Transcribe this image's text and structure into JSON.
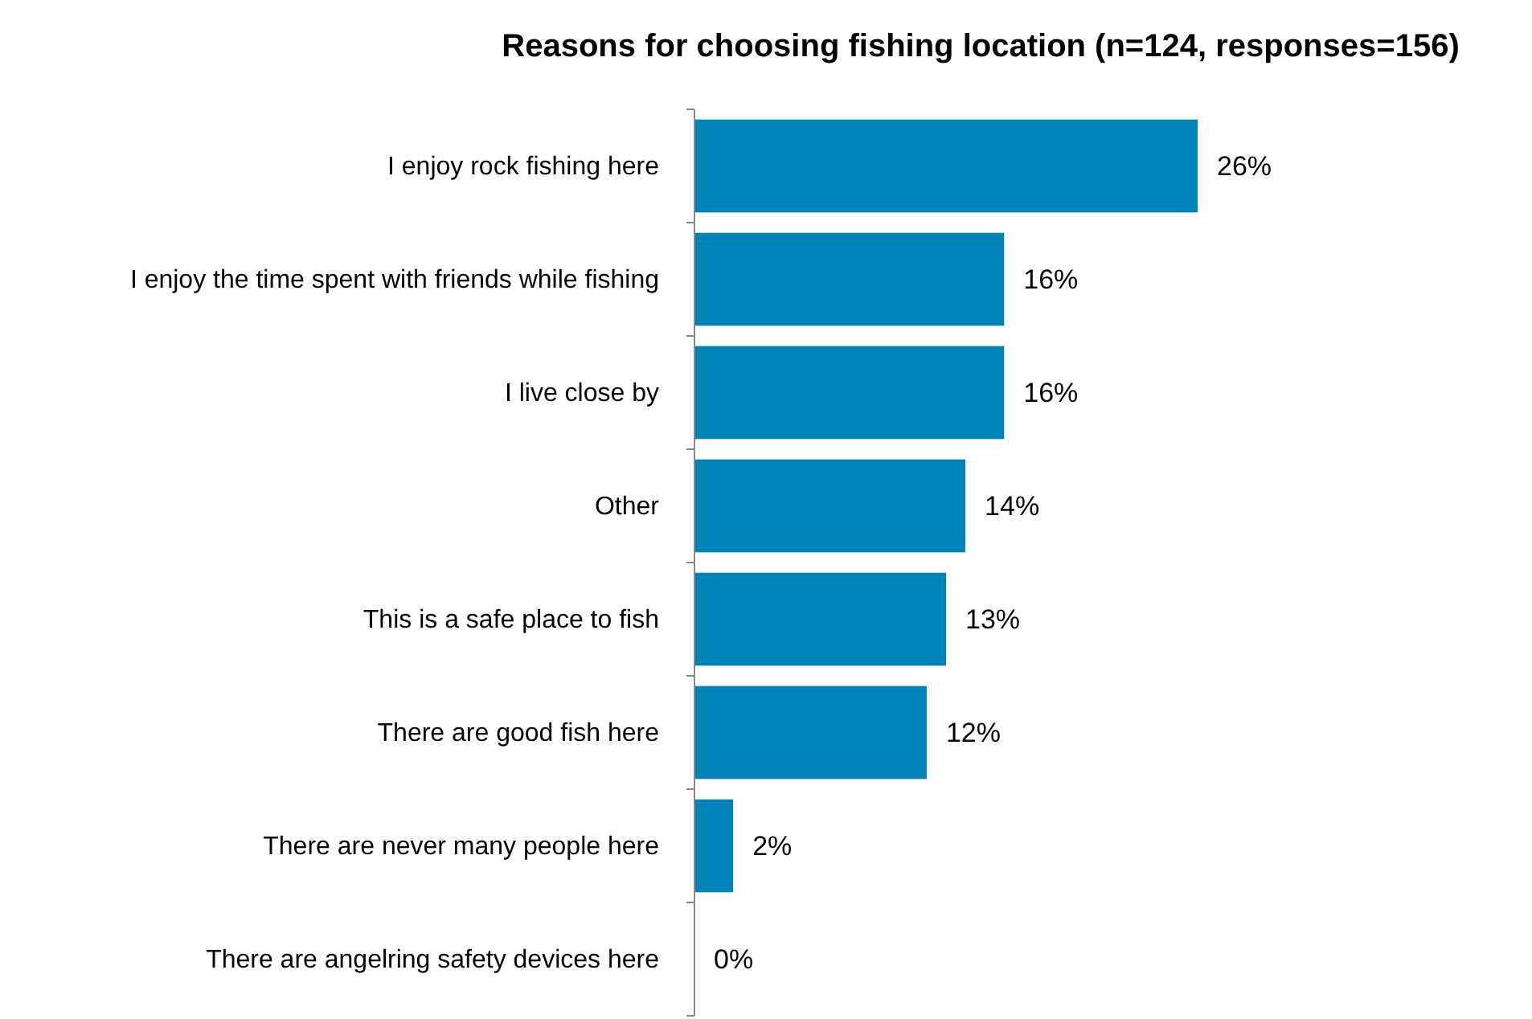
{
  "chart_data": {
    "type": "bar",
    "orientation": "horizontal",
    "title": "Reasons for choosing fishing location (n=124, responses=156)",
    "categories": [
      "I enjoy rock fishing here",
      "I enjoy the time spent with friends while fishing",
      "I live close by",
      "Other",
      "This is a safe place to fish",
      "There are good fish here",
      "There are never many people here",
      "There are angelring safety devices here"
    ],
    "values": [
      26,
      16,
      16,
      14,
      13,
      12,
      2,
      0
    ],
    "value_labels": [
      "26%",
      "16%",
      "16%",
      "14%",
      "13%",
      "12%",
      "2%",
      "0%"
    ],
    "color": "#0083b7"
  }
}
